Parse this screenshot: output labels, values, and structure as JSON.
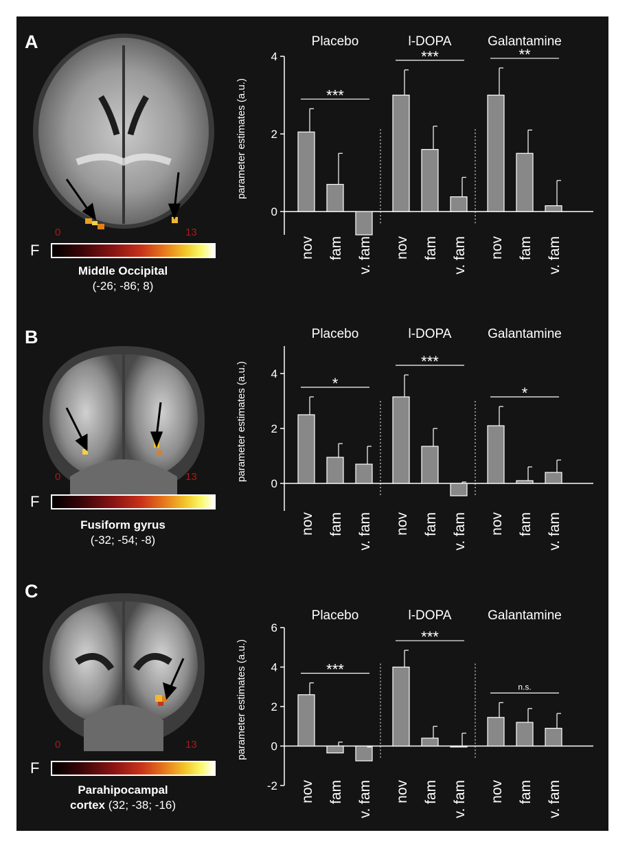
{
  "panels": [
    {
      "letter": "A",
      "region_name": "Middle Occipital",
      "region_coords": "(-26; -86; 8)",
      "colorbar": {
        "label": "F",
        "min": "0",
        "max": "13"
      }
    },
    {
      "letter": "B",
      "region_name": "Fusiform gyrus",
      "region_coords": "(-32; -54; -8)",
      "colorbar": {
        "label": "F",
        "min": "0",
        "max": "13"
      }
    },
    {
      "letter": "C",
      "region_name": "Parahipocampal",
      "region_name_2": "cortex",
      "region_coords": "(32; -38; -16)",
      "colorbar": {
        "label": "F",
        "min": "0",
        "max": "13"
      }
    }
  ],
  "chart_data": [
    {
      "type": "bar",
      "ylabel": "parameter estimates (a.u.)",
      "ylim": [
        -0.6,
        4
      ],
      "yticks": [
        0,
        2,
        4
      ],
      "categories": [
        "nov",
        "fam",
        "v. fam"
      ],
      "groups": [
        {
          "name": "Placebo",
          "values": [
            2.05,
            0.7,
            -0.6
          ],
          "errors": [
            0.6,
            0.8,
            0.0
          ],
          "significance": "***"
        },
        {
          "name": "l-DOPA",
          "values": [
            3.0,
            1.6,
            0.38
          ],
          "errors": [
            0.65,
            0.6,
            0.5
          ],
          "significance": "***"
        },
        {
          "name": "Galantamine",
          "values": [
            3.0,
            1.5,
            0.15
          ],
          "errors": [
            0.7,
            0.6,
            0.65
          ],
          "significance": "**"
        }
      ]
    },
    {
      "type": "bar",
      "ylabel": "parameter estimates (a.u.)",
      "ylim": [
        -1.0,
        5
      ],
      "yticks": [
        0,
        2,
        4
      ],
      "categories": [
        "nov",
        "fam",
        "v. fam"
      ],
      "groups": [
        {
          "name": "Placebo",
          "values": [
            2.5,
            0.95,
            0.7
          ],
          "errors": [
            0.65,
            0.5,
            0.65
          ],
          "significance": "*"
        },
        {
          "name": "l-DOPA",
          "values": [
            3.15,
            1.35,
            -0.45
          ],
          "errors": [
            0.8,
            0.65,
            0.5
          ],
          "significance": "***"
        },
        {
          "name": "Galantamine",
          "values": [
            2.1,
            0.1,
            0.4
          ],
          "errors": [
            0.7,
            0.5,
            0.45
          ],
          "significance": "*"
        }
      ]
    },
    {
      "type": "bar",
      "ylabel": "parameter estimates (a.u.)",
      "ylim": [
        -2,
        6
      ],
      "yticks": [
        -2,
        0,
        2,
        4,
        6
      ],
      "categories": [
        "nov",
        "fam",
        "v. fam"
      ],
      "groups": [
        {
          "name": "Placebo",
          "values": [
            2.6,
            -0.35,
            -0.75
          ],
          "errors": [
            0.6,
            0.55,
            0.7
          ],
          "significance": "***"
        },
        {
          "name": "l-DOPA",
          "values": [
            4.0,
            0.4,
            -0.05
          ],
          "errors": [
            0.85,
            0.6,
            0.7
          ],
          "significance": "***"
        },
        {
          "name": "Galantamine",
          "values": [
            1.45,
            1.2,
            0.9
          ],
          "errors": [
            0.75,
            0.7,
            0.75
          ],
          "significance": "n.s."
        }
      ]
    }
  ],
  "colors": {
    "bar": "#888888",
    "bar_edge": "#ffffff",
    "axis": "#ffffff",
    "text": "#ffffff",
    "colorbar_tick": "#b01818"
  }
}
